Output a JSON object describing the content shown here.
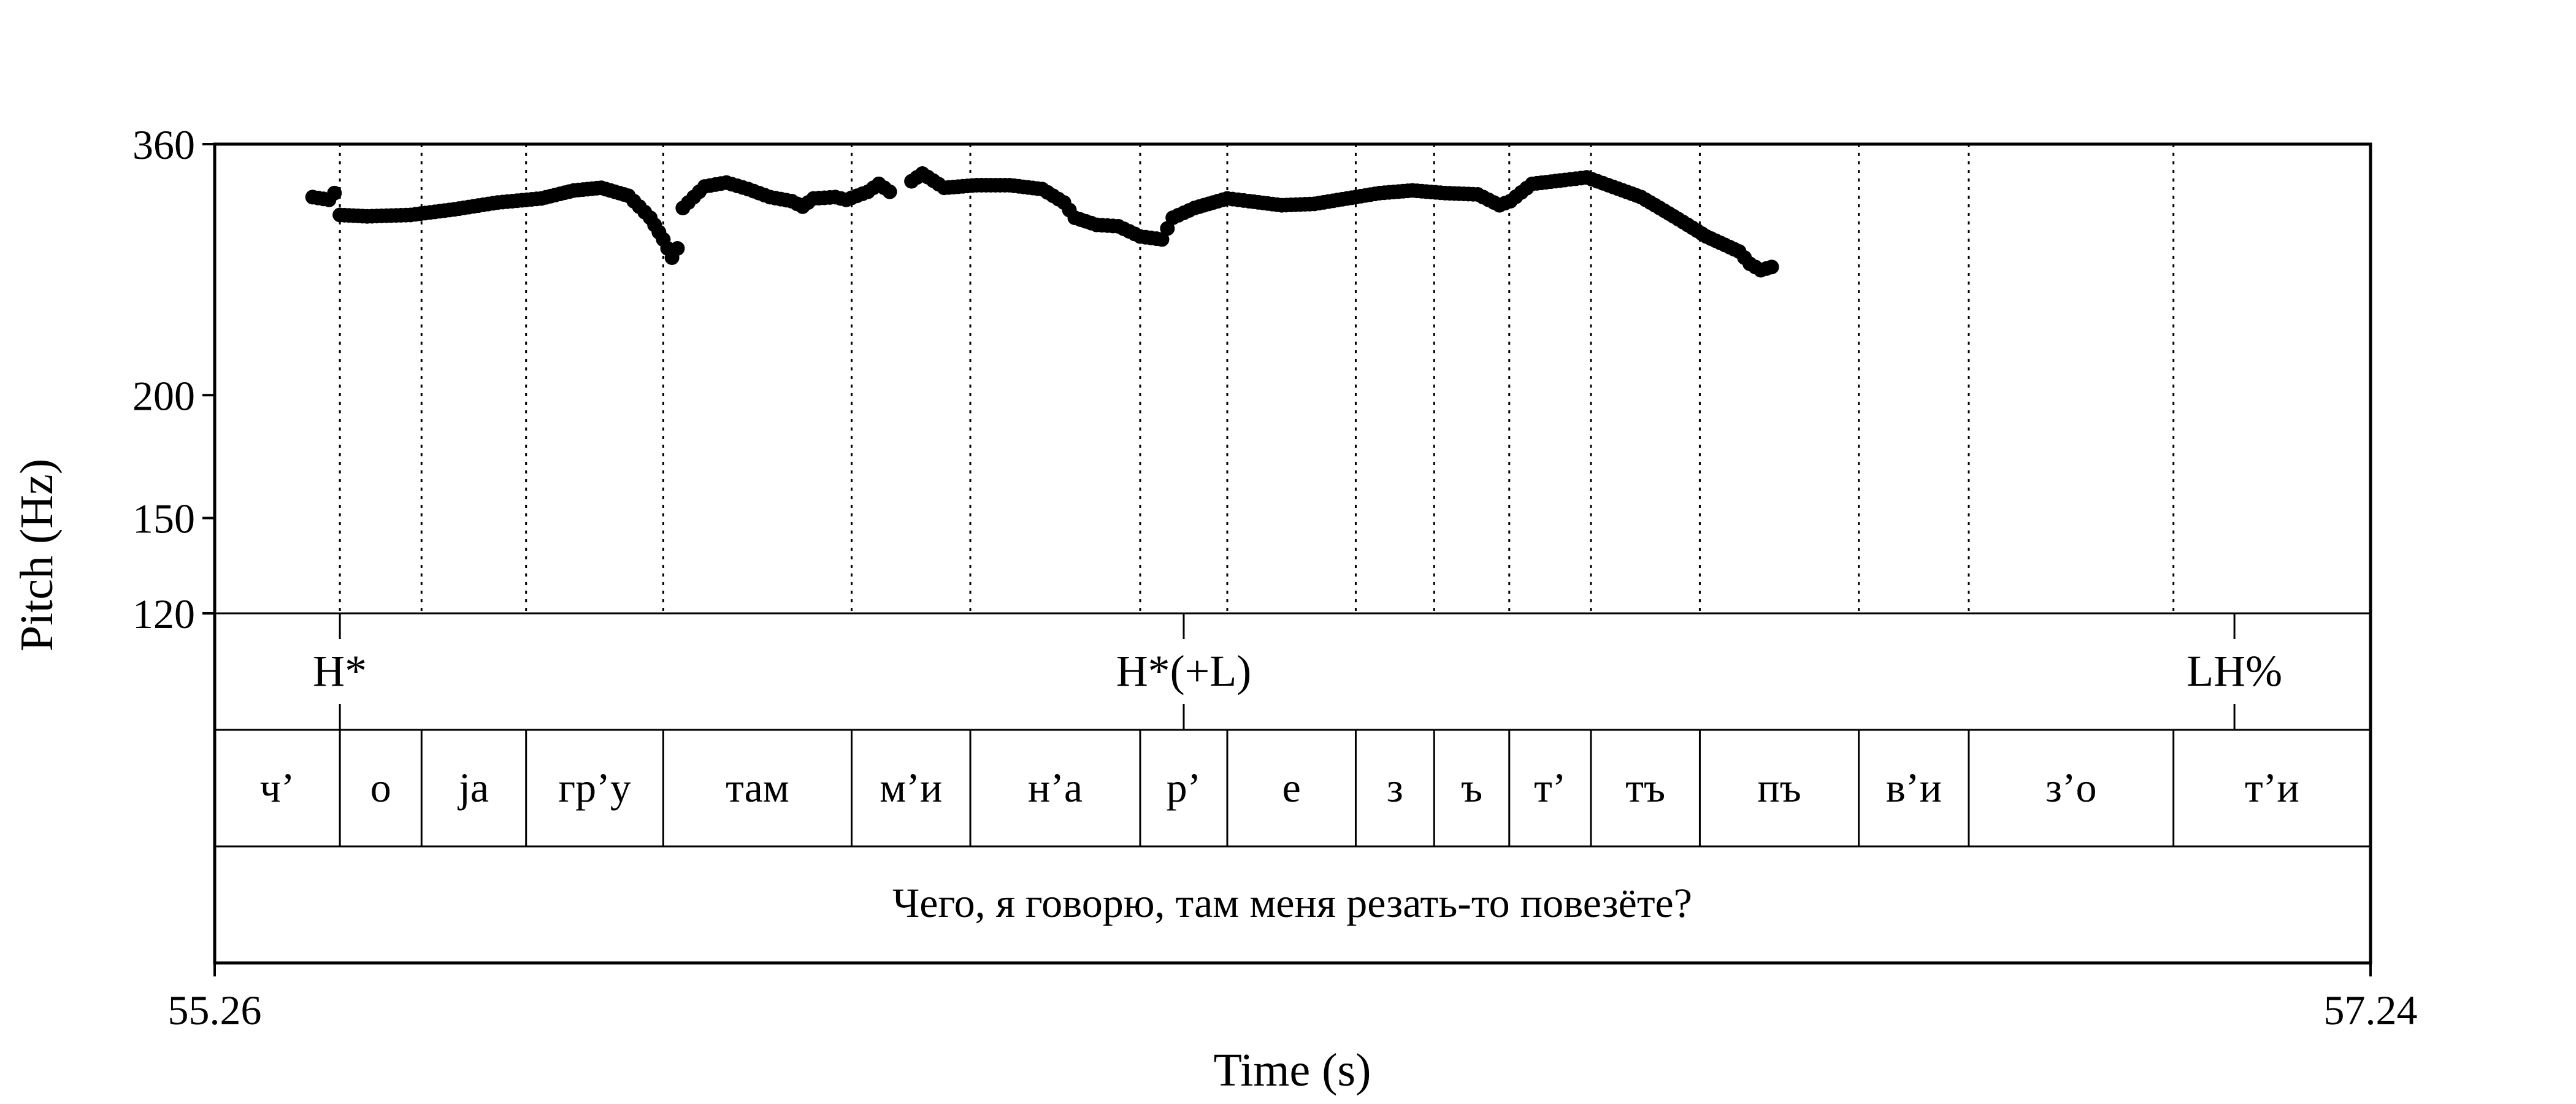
{
  "chart_data": {
    "type": "scatter",
    "xlabel": "Time (s)",
    "ylabel": "Pitch (Hz)",
    "xlim": [
      55.26,
      57.24
    ],
    "ylim": [
      120,
      360
    ],
    "y_scale": "log",
    "x_ticks": [
      "55.26",
      "57.24"
    ],
    "y_ticks": [
      360,
      200,
      150,
      120
    ],
    "grid": false,
    "marker_color": "#000000",
    "tones": [
      {
        "label": "H*",
        "time": 55.375
      },
      {
        "label": "H*(+L)",
        "time": 56.15
      },
      {
        "label": "LH%",
        "time": 57.115
      }
    ],
    "syllables": [
      {
        "label": "ч’",
        "start": 55.26,
        "end": 55.375
      },
      {
        "label": "о",
        "start": 55.375,
        "end": 55.45
      },
      {
        "label": "ja",
        "start": 55.45,
        "end": 55.546
      },
      {
        "label": "гр’у",
        "start": 55.546,
        "end": 55.672
      },
      {
        "label": "там",
        "start": 55.672,
        "end": 55.845
      },
      {
        "label": "м’и",
        "start": 55.845,
        "end": 55.954
      },
      {
        "label": "н’а",
        "start": 55.954,
        "end": 56.11
      },
      {
        "label": "р’",
        "start": 56.11,
        "end": 56.19
      },
      {
        "label": "е",
        "start": 56.19,
        "end": 56.308
      },
      {
        "label": "з",
        "start": 56.308,
        "end": 56.38
      },
      {
        "label": "ъ",
        "start": 56.38,
        "end": 56.449
      },
      {
        "label": "т’",
        "start": 56.449,
        "end": 56.524
      },
      {
        "label": "тъ",
        "start": 56.524,
        "end": 56.624
      },
      {
        "label": "пъ",
        "start": 56.624,
        "end": 56.77
      },
      {
        "label": "в’и",
        "start": 56.77,
        "end": 56.871
      },
      {
        "label": "з’о",
        "start": 56.871,
        "end": 57.059
      },
      {
        "label": "т’и",
        "start": 57.059,
        "end": 57.24
      }
    ],
    "sentence": "Чего, я говорю, там меня резать-то повезёте?",
    "pitch_segments": [
      [
        [
          55.35,
          318
        ],
        [
          55.365,
          316
        ],
        [
          55.37,
          321
        ],
        [
          55.375,
          305
        ],
        [
          55.4,
          304
        ],
        [
          55.44,
          305
        ],
        [
          55.48,
          309
        ],
        [
          55.52,
          314
        ],
        [
          55.56,
          317
        ],
        [
          55.59,
          323
        ],
        [
          55.615,
          325
        ],
        [
          55.64,
          319
        ],
        [
          55.66,
          303
        ],
        [
          55.672,
          288
        ],
        [
          55.68,
          276
        ],
        [
          55.685,
          282
        ]
      ],
      [
        [
          55.69,
          310
        ],
        [
          55.71,
          326
        ],
        [
          55.73,
          329
        ],
        [
          55.75,
          324
        ],
        [
          55.77,
          318
        ],
        [
          55.79,
          315
        ],
        [
          55.8,
          311
        ],
        [
          55.81,
          317
        ],
        [
          55.83,
          318
        ],
        [
          55.84,
          316
        ],
        [
          55.86,
          322
        ],
        [
          55.87,
          328
        ],
        [
          55.88,
          322
        ]
      ],
      [
        [
          55.9,
          330
        ],
        [
          55.91,
          336
        ],
        [
          55.93,
          325
        ],
        [
          55.96,
          327
        ],
        [
          55.99,
          327
        ],
        [
          56.02,
          324
        ],
        [
          56.04,
          314
        ],
        [
          56.05,
          303
        ],
        [
          56.07,
          298
        ],
        [
          56.09,
          297
        ],
        [
          56.11,
          290
        ],
        [
          56.13,
          288
        ],
        [
          56.14,
          303
        ],
        [
          56.16,
          310
        ],
        [
          56.19,
          317
        ],
        [
          56.21,
          315
        ],
        [
          56.24,
          312
        ],
        [
          56.27,
          313
        ],
        [
          56.3,
          317
        ],
        [
          56.33,
          321
        ],
        [
          56.36,
          323
        ],
        [
          56.39,
          321
        ],
        [
          56.42,
          320
        ],
        [
          56.44,
          312
        ],
        [
          56.45,
          315
        ],
        [
          56.47,
          328
        ],
        [
          56.5,
          331
        ],
        [
          56.52,
          333
        ],
        [
          56.54,
          327
        ],
        [
          56.57,
          318
        ],
        [
          56.6,
          304
        ],
        [
          56.63,
          290
        ],
        [
          56.66,
          280
        ],
        [
          56.67,
          272
        ],
        [
          56.68,
          268
        ],
        [
          56.69,
          270
        ]
      ]
    ]
  }
}
